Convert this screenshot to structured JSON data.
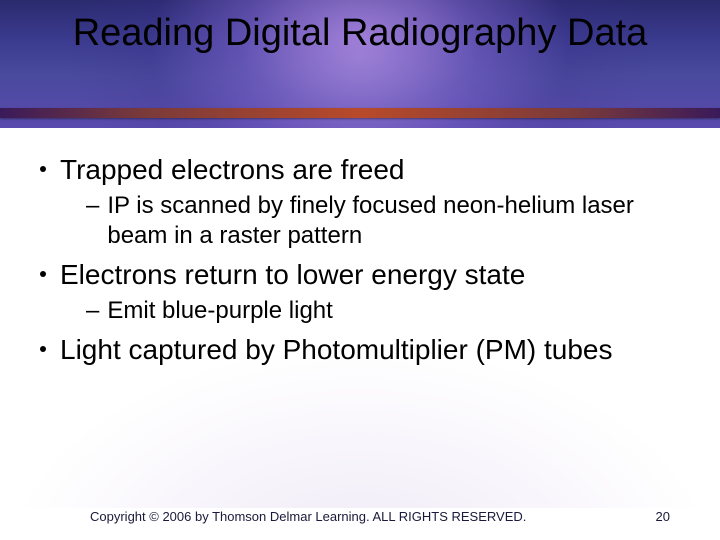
{
  "title": "Reading Digital Radiography Data",
  "bullets": [
    {
      "level": 1,
      "text": "Trapped electrons are freed"
    },
    {
      "level": 2,
      "text": "IP is scanned by finely focused neon-helium laser beam in a raster pattern"
    },
    {
      "level": 1,
      "text": "Electrons return to lower energy state"
    },
    {
      "level": 2,
      "text": "Emit blue-purple light"
    },
    {
      "level": 1,
      "text": "Light captured by Photomultiplier (PM) tubes"
    }
  ],
  "footer": {
    "copyright": "Copyright © 2006 by Thomson Delmar Learning. ALL RIGHTS RESERVED.",
    "page": "20"
  },
  "style": {
    "title_fontsize": 38,
    "l1_fontsize": 28,
    "l2_fontsize": 24,
    "footer_fontsize": 13,
    "text_color": "#000000",
    "header_gradient": [
      "#2a2a6e",
      "#5a4aae"
    ],
    "glow_color": "rgba(160,120,220,0.7)",
    "underline_gradient": [
      "#3a1a5a",
      "#b84a2a",
      "#3a1a5a"
    ],
    "content_bg": "#ffffff"
  }
}
